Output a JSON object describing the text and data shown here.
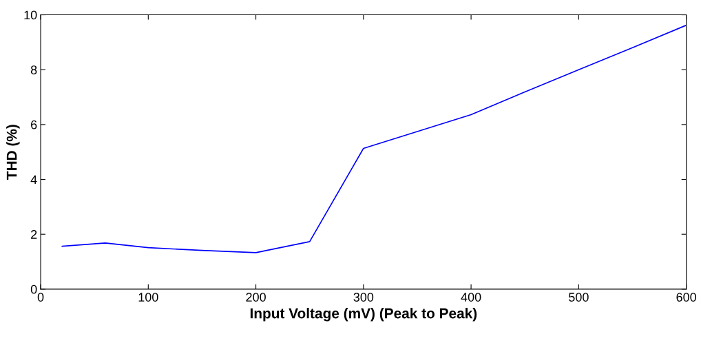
{
  "chart_data": {
    "type": "line",
    "xlabel": "Input Voltage (mV) (Peak to Peak)",
    "ylabel": "THD (%)",
    "x": [
      20,
      60,
      100,
      150,
      200,
      250,
      300,
      400,
      450,
      500,
      550,
      600
    ],
    "series": [
      {
        "color": "#0000ff",
        "values": [
          1.56,
          1.68,
          1.51,
          1.41,
          1.33,
          1.73,
          5.13,
          6.36,
          7.19,
          8.0,
          8.8,
          9.62
        ]
      }
    ],
    "xlim": [
      0,
      600
    ],
    "xticks": [
      0,
      100,
      200,
      300,
      400,
      500,
      600
    ],
    "ylim": [
      0,
      10
    ],
    "yticks": [
      0,
      2,
      4,
      6,
      8,
      10
    ],
    "grid": false,
    "marker": "none",
    "line_style": "solid"
  }
}
